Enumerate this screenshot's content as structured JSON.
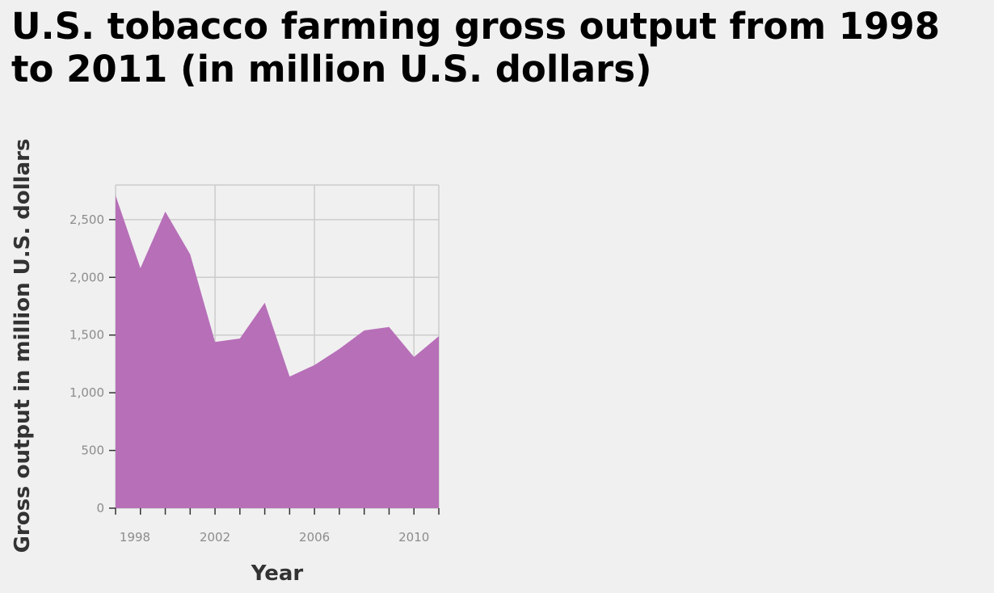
{
  "chart_data": {
    "type": "area",
    "title": "U.S. tobacco farming gross output from 1998 to 2011 (in million U.S. dollars)",
    "xlabel": "Year",
    "ylabel": "Gross output in million U.S. dollars",
    "x": [
      1998,
      1999,
      2000,
      2001,
      2002,
      2003,
      2004,
      2005,
      2006,
      2007,
      2008,
      2009,
      2010,
      2011
    ],
    "values": [
      2710,
      2080,
      2570,
      2200,
      1440,
      1470,
      1780,
      1140,
      1240,
      1380,
      1540,
      1570,
      1310,
      1490
    ],
    "xlim": [
      1998,
      2011
    ],
    "ylim": [
      0,
      2800
    ],
    "x_ticks": [
      1998,
      2002,
      2006,
      2010
    ],
    "x_tick_labels": [
      "1998",
      "2002",
      "2006",
      "2010"
    ],
    "y_ticks": [
      0,
      500,
      1000,
      1500,
      2000,
      2500
    ],
    "y_tick_labels": [
      "0",
      "500",
      "1,000",
      "1,500",
      "2,000",
      "2,500"
    ],
    "grid": true,
    "legend": "none",
    "colors": {
      "area": "#b76fb8",
      "grid": "#cccccc",
      "background": "#f0f0f0"
    }
  }
}
